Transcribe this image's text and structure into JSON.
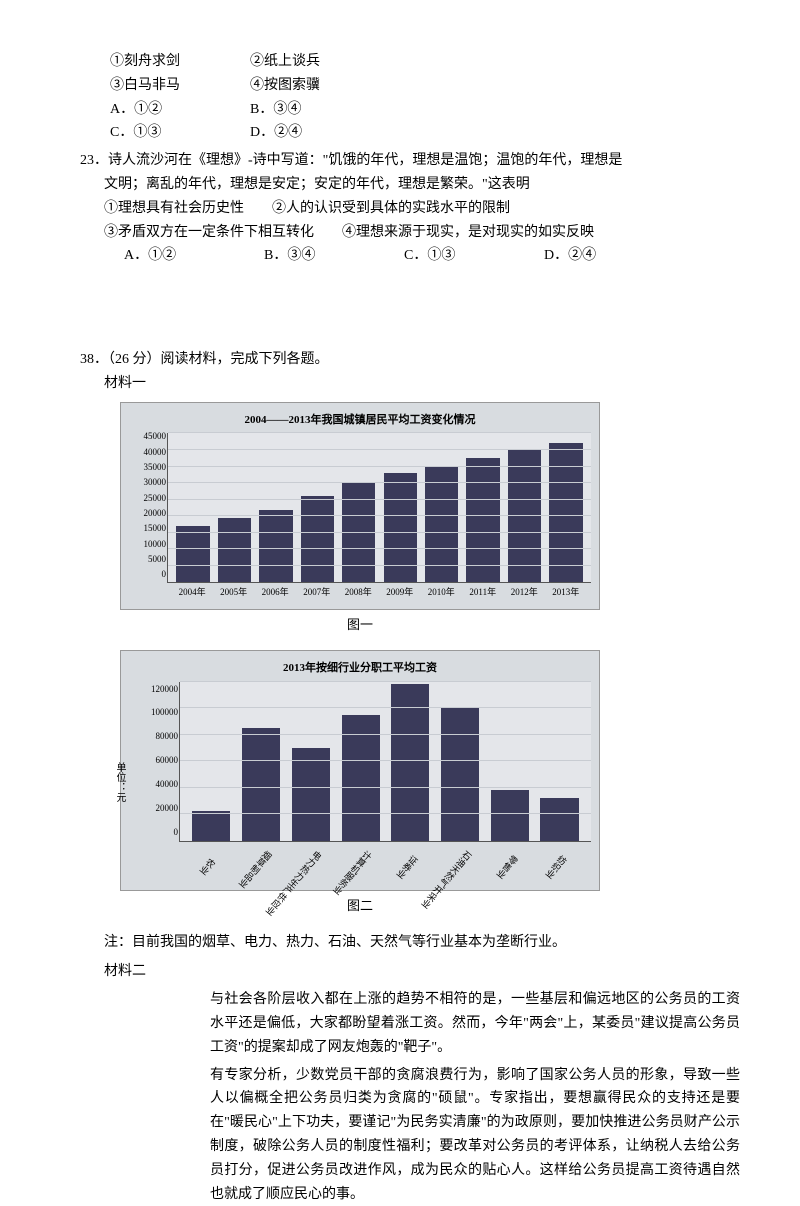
{
  "q22": {
    "opts": {
      "o1": "①刻舟求剑",
      "o2": "②纸上谈兵",
      "o3": "③白马非马",
      "o4": "④按图索骥"
    },
    "answers": {
      "a": "A．①②",
      "b": "B．③④",
      "c": "C．①③",
      "d": "D．②④"
    }
  },
  "q23": {
    "stem1": "23．诗人流沙河在《理想》-诗中写道：\"饥饿的年代，理想是温饱；温饱的年代，理想是",
    "stem2": "文明；离乱的年代，理想是安定；安定的年代，理想是繁荣。\"这表明",
    "opts_line1": "①理想具有社会历史性　　②人的认识受到具体的实践水平的限制",
    "opts_line2": "③矛盾双方在一定条件下相互转化　　④理想来源于现实，是对现实的如实反映",
    "answers": {
      "a": "A．①②",
      "b": "B．③④",
      "c": "C．①③",
      "d": "D．②④"
    }
  },
  "q38": {
    "head": "38．（26 分）阅读材料，完成下列各题。",
    "mat1_label": "材料一",
    "chart1": {
      "title": "2004——2013年我国城镇居民平均工资变化情况",
      "ymax": 45000,
      "yticks": [
        "0",
        "5000",
        "10000",
        "15000",
        "20000",
        "25000",
        "30000",
        "35000",
        "40000",
        "45000"
      ],
      "years": [
        "2004年",
        "2005年",
        "2006年",
        "2007年",
        "2008年",
        "2009年",
        "2010年",
        "2011年",
        "2012年",
        "2013年"
      ],
      "values": [
        17000,
        19500,
        22000,
        26000,
        30000,
        33000,
        35000,
        37500,
        40000,
        42000
      ],
      "bar_color": "#3a3a5a",
      "bg_color": "#d8dce0",
      "plot_bg": "#e4e6ea"
    },
    "chart1_caption": "图一",
    "chart2": {
      "title": "2013年按细行业分职工平均工资",
      "ymax": 120000,
      "yticks": [
        "0",
        "20000",
        "40000",
        "60000",
        "80000",
        "100000",
        "120000"
      ],
      "yaxis_label": "单位：元",
      "cats": [
        "农业",
        "烟草制品业",
        "电力热力生产供应业",
        "计算机服务业",
        "证券业",
        "石油天然气开采业",
        "零售业",
        "纺织业"
      ],
      "values": [
        22000,
        85000,
        70000,
        95000,
        118000,
        100000,
        38000,
        32000
      ],
      "bar_color": "#3a3a5a",
      "bg_color": "#d8dce0",
      "plot_bg": "#e4e6ea"
    },
    "chart2_caption": "图二",
    "note": "注：目前我国的烟草、电力、热力、石油、天然气等行业基本为垄断行业。",
    "mat2_label": "材料二",
    "mat2_p1": "与社会各阶层收入都在上涨的趋势不相符的是，一些基层和偏远地区的公务员的工资水平还是偏低，大家都盼望着涨工资。然而，今年\"两会\"上，某委员\"建议提高公务员工资\"的提案却成了网友炮轰的\"靶子\"。",
    "mat2_p2": "有专家分析，少数党员干部的贪腐浪费行为，影响了国家公务人员的形象，导致一些人以偏概全把公务员归类为贪腐的\"硕鼠\"。专家指出，要想赢得民众的支持还是要在\"暖民心\"上下功夫，要谨记\"为民务实清廉\"的为政原则，要加快推进公务员财产公示制度，破除公务人员的制度性福利；要改革对公务员的考评体系，让纳税人去给公务员打分，促进公务员改进作风，成为民众的贴心人。这样给公务员提高工资待遇自然也就成了顺应民心的事。"
  }
}
